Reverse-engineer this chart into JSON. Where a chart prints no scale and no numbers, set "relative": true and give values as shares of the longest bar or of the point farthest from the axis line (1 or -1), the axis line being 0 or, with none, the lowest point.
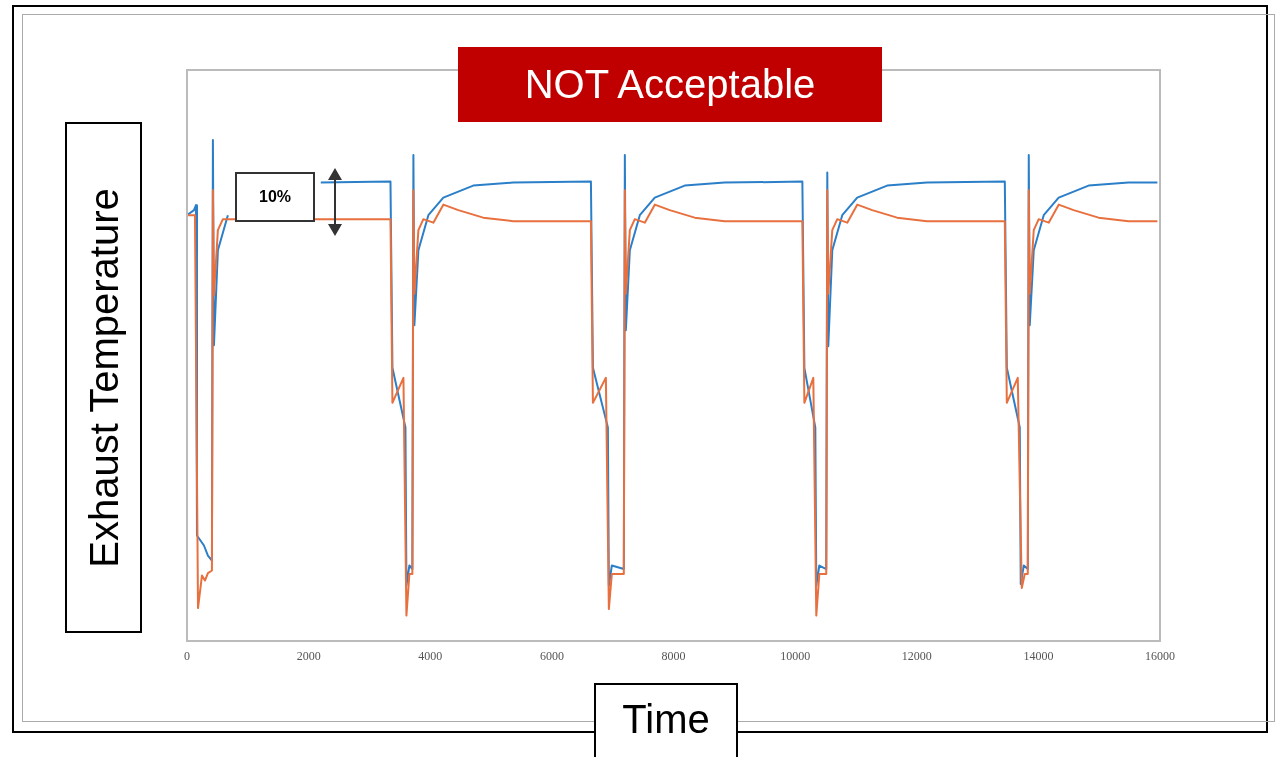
{
  "chart_data": {
    "type": "line",
    "title": "NOT Acceptable",
    "xlabel": "Time",
    "ylabel": "Exhaust Temperature",
    "annotations": [
      "10%"
    ],
    "relative": true,
    "xlim": [
      0,
      16000
    ],
    "xticks": [
      0,
      2000,
      4000,
      6000,
      8000,
      10000,
      12000,
      14000,
      16000
    ],
    "grid": false,
    "legend": false,
    "marker": "none",
    "line_style": "solid",
    "series": [
      {
        "color": "#2b7fc8",
        "x": [
          0,
          115,
          148,
          164,
          279,
          344,
          410,
          426,
          443,
          508,
          672,
          918,
          1410,
          2200,
          3346,
          3378,
          3592,
          3608,
          3657,
          3706,
          3723,
          3739,
          3805,
          3969,
          4215,
          4707,
          5363,
          6642,
          6675,
          6921,
          6937,
          6986,
          7183,
          7200,
          7216,
          7282,
          7446,
          7692,
          8184,
          8840,
          10119,
          10152,
          10332,
          10348,
          10398,
          10512,
          10529,
          10545,
          10611,
          10775,
          11021,
          11513,
          12169,
          13448,
          13481,
          13694,
          13710,
          13760,
          13826,
          13842,
          13858,
          13924,
          14088,
          14334,
          14826,
          15482,
          15957
        ],
        "values": [
          0.85,
          0.86,
          0.87,
          0.21,
          0.19,
          0.17,
          0.16,
          1.0,
          0.59,
          0.78,
          0.85,
          null,
          null,
          0.915,
          0.917,
          0.545,
          0.426,
          0.11,
          0.15,
          0.143,
          0.97,
          0.63,
          0.78,
          0.85,
          0.885,
          0.909,
          0.915,
          0.917,
          0.545,
          0.426,
          0.11,
          0.15,
          0.143,
          0.97,
          0.62,
          0.78,
          0.85,
          0.885,
          0.909,
          0.915,
          0.917,
          0.545,
          0.426,
          0.11,
          0.15,
          0.143,
          0.935,
          0.588,
          0.78,
          0.85,
          0.885,
          0.909,
          0.915,
          0.917,
          0.545,
          0.426,
          0.113,
          0.15,
          0.143,
          0.97,
          0.63,
          0.78,
          0.85,
          0.885,
          0.909,
          0.915,
          0.915
        ]
      },
      {
        "color": "#e8703f",
        "x": [
          0,
          131,
          181,
          246,
          295,
          344,
          410,
          426,
          443,
          508,
          590,
          3346,
          3378,
          3559,
          3608,
          3657,
          3706,
          3723,
          3739,
          3805,
          3887,
          4051,
          4215,
          4461,
          4871,
          5363,
          6642,
          6675,
          6888,
          6937,
          6986,
          7183,
          7200,
          7216,
          7282,
          7364,
          7528,
          7692,
          7938,
          8348,
          8840,
          10119,
          10152,
          10299,
          10348,
          10398,
          10512,
          10529,
          10545,
          10611,
          10693,
          10857,
          11021,
          11267,
          11677,
          12169,
          13448,
          13481,
          13661,
          13727,
          13776,
          13826,
          13842,
          13858,
          13924,
          14006,
          14170,
          14334,
          14580,
          14990,
          15482,
          15957
        ],
        "values": [
          0.85,
          0.85,
          0.065,
          0.13,
          0.12,
          0.135,
          0.14,
          0.9,
          0.69,
          0.82,
          0.842,
          0.842,
          0.475,
          0.525,
          0.05,
          0.133,
          0.133,
          0.9,
          0.693,
          0.82,
          0.842,
          0.835,
          0.871,
          0.86,
          0.845,
          0.838,
          0.838,
          0.475,
          0.525,
          0.063,
          0.133,
          0.133,
          0.9,
          0.693,
          0.82,
          0.842,
          0.835,
          0.871,
          0.86,
          0.845,
          0.838,
          0.838,
          0.475,
          0.525,
          0.05,
          0.133,
          0.133,
          0.9,
          0.693,
          0.82,
          0.842,
          0.835,
          0.871,
          0.86,
          0.845,
          0.838,
          0.838,
          0.475,
          0.525,
          0.105,
          0.133,
          0.133,
          0.9,
          0.693,
          0.82,
          0.842,
          0.835,
          0.871,
          0.86,
          0.845,
          0.838,
          0.838
        ]
      }
    ]
  }
}
